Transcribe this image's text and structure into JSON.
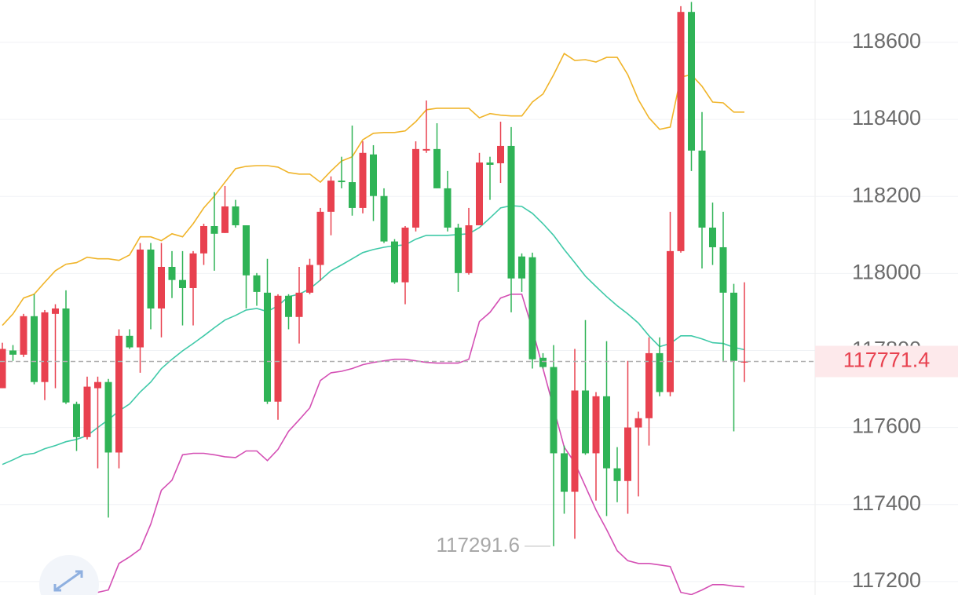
{
  "chart_data": {
    "type": "candlestick",
    "candles": {
      "open": [
        117702,
        117800,
        117789,
        117889,
        117718,
        117895,
        117909,
        117661,
        117575,
        117702,
        117718,
        117535,
        117838,
        117808,
        118062,
        117909,
        118017,
        117983,
        117962,
        118052,
        118123,
        118105,
        118174,
        118125,
        117995,
        117950,
        117667,
        117942,
        117887,
        117950,
        118022,
        118160,
        118241,
        118237,
        118170,
        118309,
        118201,
        118083,
        117977,
        118119,
        118319,
        118323,
        118221,
        118119,
        118001,
        118125,
        118288,
        118286,
        118331,
        118044,
        118042,
        117781,
        117757,
        117533,
        117433,
        117696,
        117533,
        117681,
        117494,
        117461,
        117600,
        117624,
        117793,
        117692,
        118058,
        118679,
        118319,
        118119,
        118068,
        117950,
        117769
      ],
      "high": [
        117820,
        117814,
        117895,
        117946,
        117905,
        117920,
        117956,
        117667,
        117732,
        117732,
        117726,
        117855,
        117855,
        118079,
        118079,
        118079,
        118058,
        118058,
        118058,
        118129,
        118211,
        118227,
        118191,
        118125,
        118001,
        118038,
        117946,
        117946,
        118017,
        118038,
        118170,
        118252,
        118303,
        118384,
        118343,
        118333,
        118221,
        118089,
        118123,
        118343,
        118449,
        118390,
        118266,
        118129,
        118170,
        118313,
        118303,
        118394,
        118380,
        118052,
        118054,
        117793,
        117814,
        117553,
        117804,
        117879,
        117692,
        117824,
        117549,
        117773,
        117641,
        117834,
        117834,
        118160,
        118694,
        118705,
        118419,
        118184,
        118160,
        117973,
        117977
      ],
      "low": [
        117702,
        117773,
        117783,
        117712,
        117671,
        117702,
        117661,
        117539,
        117569,
        117494,
        117366,
        117494,
        117804,
        117742,
        117855,
        117834,
        117936,
        117865,
        117865,
        118022,
        118007,
        118105,
        118119,
        117909,
        117916,
        117661,
        117620,
        117855,
        117818,
        117946,
        117981,
        118099,
        118221,
        118150,
        118156,
        118136,
        118079,
        117973,
        117920,
        118109,
        118313,
        118221,
        118109,
        117952,
        117997,
        118125,
        118191,
        118235,
        117899,
        117952,
        117753,
        117753,
        117291.6,
        117376,
        117311,
        117529,
        117410,
        117370,
        117406,
        117376,
        117421,
        117553,
        117681,
        117681,
        118054,
        118266,
        118013,
        118022,
        117773,
        117590,
        117718
      ],
      "close": [
        117804,
        117789,
        117889,
        117718,
        117899,
        117909,
        117665,
        117575,
        117706,
        117718,
        117535,
        117838,
        117808,
        118062,
        117909,
        118017,
        117983,
        117962,
        118052,
        118123,
        118103,
        118174,
        118125,
        117995,
        117952,
        117667,
        117942,
        117887,
        117950,
        118022,
        118160,
        118241,
        118237,
        118170,
        118313,
        118201,
        118083,
        117977,
        118119,
        118323,
        118323,
        118221,
        118119,
        118001,
        118125,
        118288,
        118282,
        118331,
        117987,
        117987,
        117777,
        117757,
        117533,
        117433,
        117696,
        117533,
        117681,
        117494,
        117461,
        117600,
        117624,
        117793,
        117692,
        118058,
        118679,
        118319,
        118119,
        118068,
        117950,
        117773,
        117771.4
      ]
    },
    "up_color": "#e8414f",
    "down_color": "#2fb356",
    "series": [
      {
        "color": "#f0b429",
        "values": [
          117865,
          117895,
          117936,
          117946,
          117977,
          118007,
          118024,
          118028,
          118042,
          118038,
          118038,
          118034,
          118048,
          118095,
          118095,
          118085,
          118103,
          118095,
          118129,
          118170,
          118201,
          118237,
          118272,
          118278,
          118280,
          118280,
          118276,
          118262,
          118258,
          118258,
          118237,
          118266,
          118292,
          118303,
          118347,
          118364,
          118366,
          118366,
          118370,
          118394,
          118425,
          118429,
          118429,
          118429,
          118429,
          118404,
          118415,
          118411,
          118409,
          118409,
          118445,
          118466,
          118516,
          118571,
          118553,
          118555,
          118549,
          118561,
          118561,
          118516,
          118451,
          118404,
          118374,
          118380,
          118510,
          118516,
          118486,
          118445,
          118443,
          118419,
          118419
        ]
      },
      {
        "color": "#3fc9a8",
        "values": [
          117504,
          117516,
          117529,
          117533,
          117545,
          117553,
          117563,
          117569,
          117579,
          117600,
          117620,
          117643,
          117661,
          117692,
          117718,
          117753,
          117777,
          117799,
          117818,
          117838,
          117859,
          117879,
          117891,
          117905,
          117909,
          117901,
          117916,
          117940,
          117946,
          117960,
          117983,
          118007,
          118022,
          118038,
          118054,
          118062,
          118068,
          118072,
          118074,
          118089,
          118099,
          118099,
          118099,
          118101,
          118103,
          118119,
          118144,
          118170,
          118176,
          118174,
          118156,
          118129,
          118099,
          118062,
          118028,
          117993,
          117966,
          117940,
          117916,
          117895,
          117871,
          117838,
          117810,
          117818,
          117838,
          117838,
          117830,
          117820,
          117818,
          117808,
          117802
        ]
      },
      {
        "color": "#d44fb4",
        "values": [
          null,
          null,
          null,
          null,
          null,
          null,
          null,
          null,
          null,
          117172,
          117178,
          117247,
          117264,
          117284,
          117349,
          117437,
          117463,
          117529,
          117533,
          117533,
          117529,
          117524,
          117522,
          117539,
          117539,
          117514,
          117543,
          117590,
          117620,
          117651,
          117722,
          117742,
          117746,
          117753,
          117763,
          117769,
          117773,
          117777,
          117777,
          117773,
          117769,
          117767,
          117767,
          117767,
          117777,
          117875,
          117899,
          117936,
          117946,
          117946,
          117855,
          117753,
          117651,
          117549,
          117508,
          117447,
          117386,
          117335,
          117280,
          117254,
          117247,
          117247,
          117243,
          117239,
          117172,
          117166,
          117178,
          117192,
          117192,
          117188,
          117186
        ]
      }
    ],
    "ylim": [
      117165,
      118710
    ],
    "yticks": [
      117200,
      117400,
      117600,
      117800,
      118000,
      118200,
      118400,
      118600
    ],
    "grid": true
  }
}
